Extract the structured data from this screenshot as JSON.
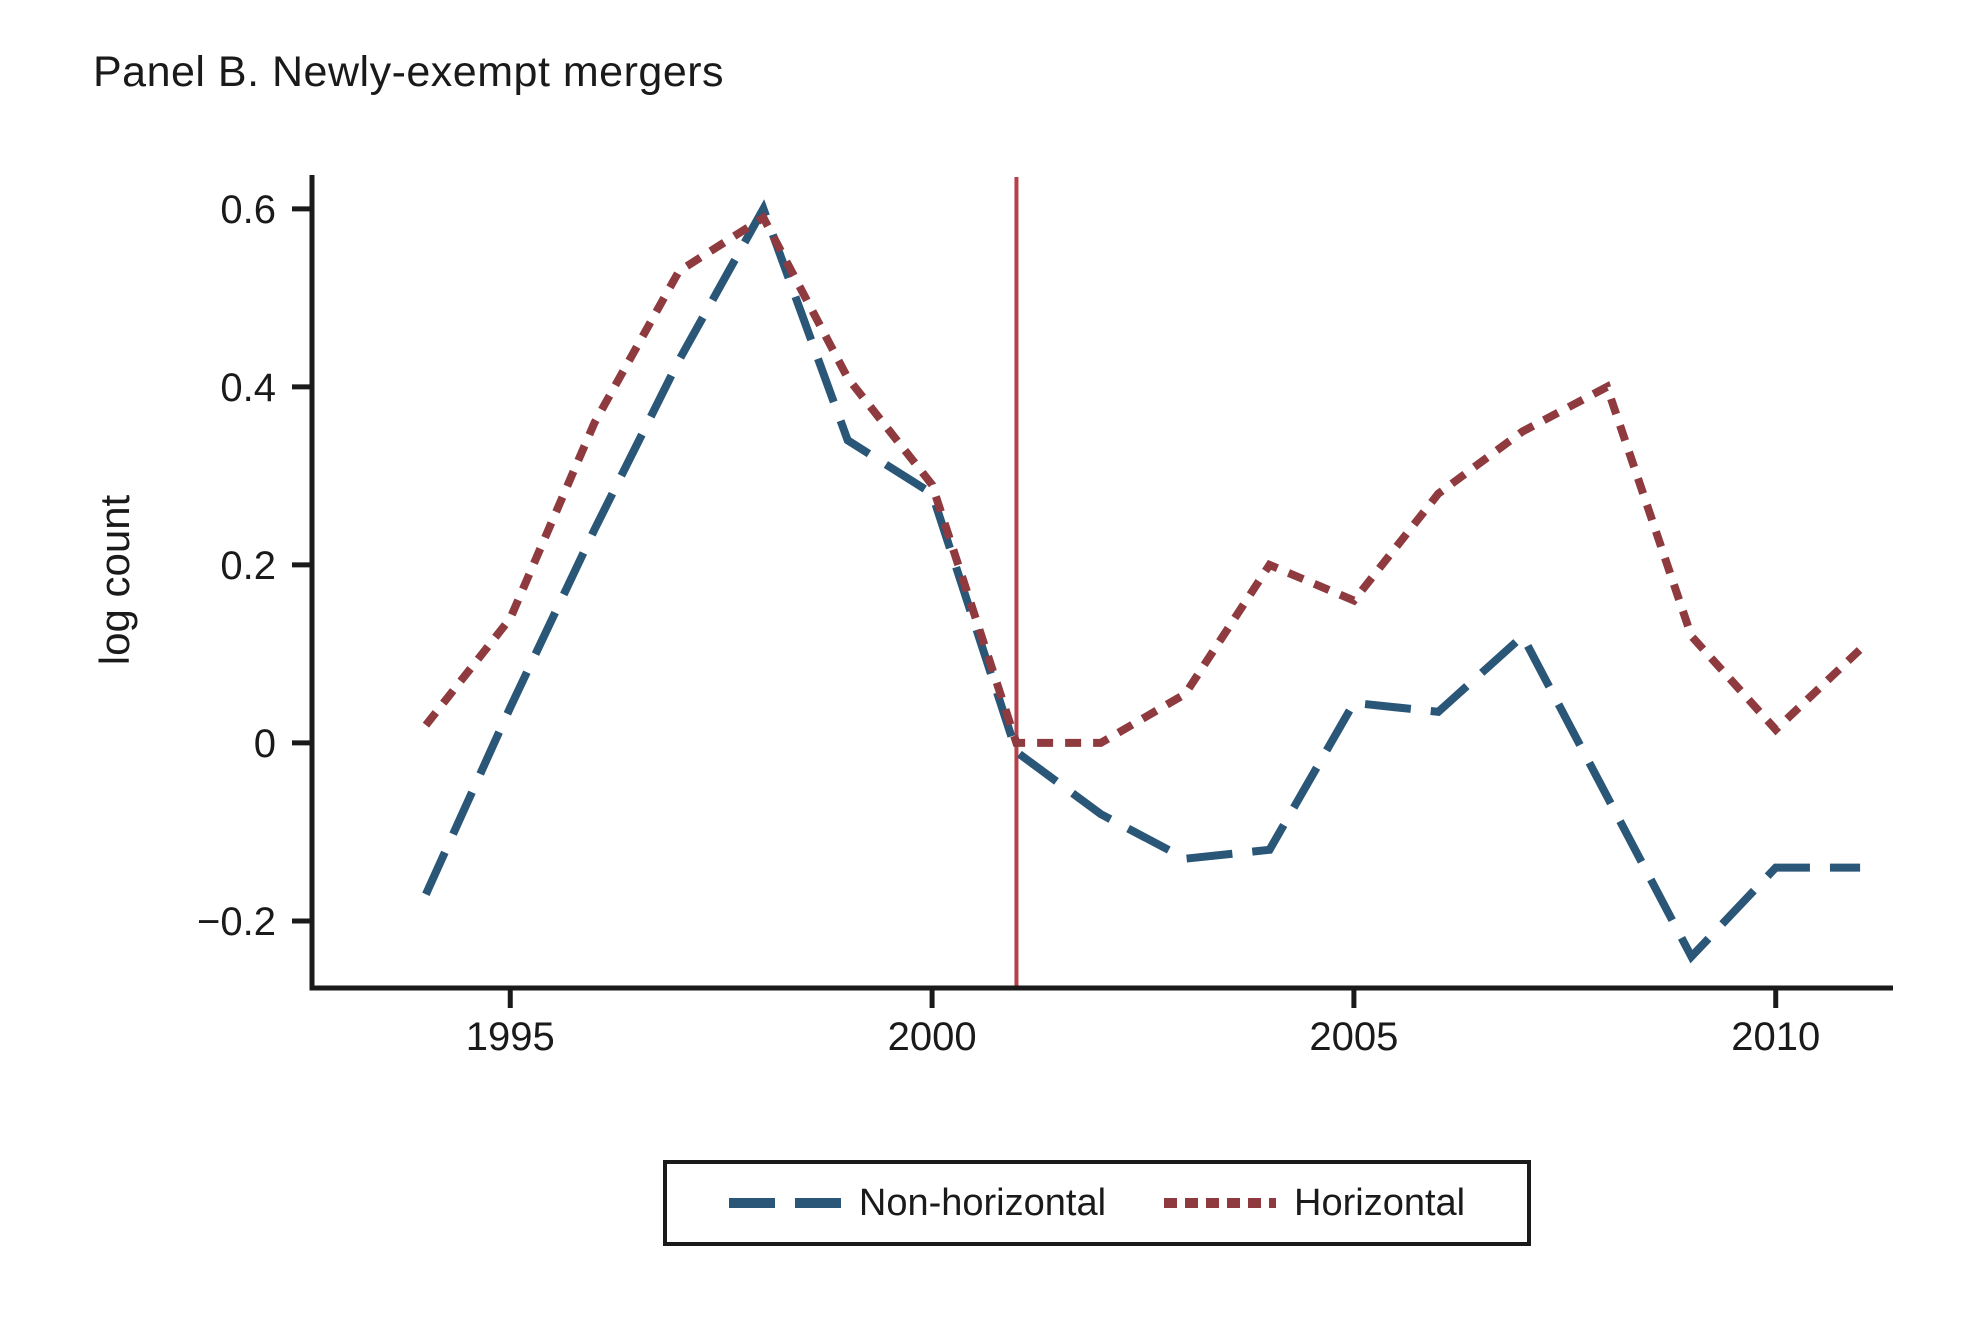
{
  "chart_data": {
    "type": "line",
    "title": "Panel B. Newly-exempt mergers",
    "ylabel": "log count",
    "xlabel": "",
    "grid": false,
    "legend_position": "bottom",
    "x": [
      1994,
      1995,
      1996,
      1997,
      1998,
      1999,
      2000,
      2001,
      2002,
      2003,
      2004,
      2005,
      2006,
      2007,
      2008,
      2009,
      2010,
      2011
    ],
    "series": [
      {
        "name": "Non-horizontal",
        "color": "#2A5678",
        "dash_style": "long-dash",
        "values": [
          -0.17,
          0.04,
          0.24,
          0.43,
          0.6,
          0.34,
          0.28,
          -0.01,
          -0.08,
          -0.13,
          -0.12,
          0.045,
          0.035,
          0.12,
          -0.06,
          -0.24,
          -0.14,
          -0.14
        ]
      },
      {
        "name": "Horizontal",
        "color": "#8F3A3E",
        "dash_style": "short-dash",
        "values": [
          0.02,
          0.14,
          0.36,
          0.53,
          0.59,
          0.41,
          0.29,
          0.0,
          0.0,
          0.055,
          0.2,
          0.16,
          0.28,
          0.35,
          0.4,
          0.12,
          0.015,
          0.105
        ]
      }
    ],
    "vline": {
      "x": 2001,
      "color": "#B5404A"
    },
    "x_ticks": [
      {
        "v": 1995,
        "label": "1995"
      },
      {
        "v": 2000,
        "label": "2000"
      },
      {
        "v": 2005,
        "label": "2005"
      },
      {
        "v": 2010,
        "label": "2010"
      }
    ],
    "y_ticks": [
      {
        "v": -0.2,
        "label": "−0.2"
      },
      {
        "v": 0,
        "label": "0"
      },
      {
        "v": 0.2,
        "label": "0.2"
      },
      {
        "v": 0.4,
        "label": "0.4"
      },
      {
        "v": 0.6,
        "label": "0.6"
      }
    ],
    "x_range": [
      1992.65,
      2011.39
    ],
    "y_range": [
      -0.2753,
      0.638
    ],
    "axis_color": "#1a1a1a"
  }
}
